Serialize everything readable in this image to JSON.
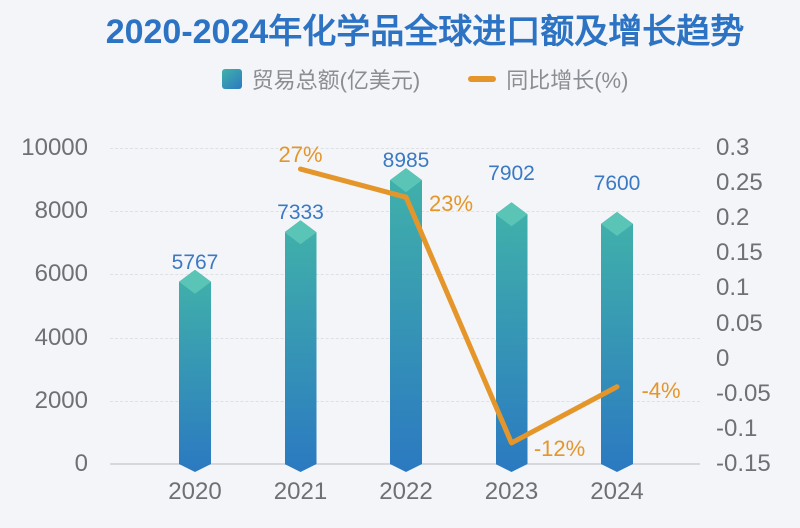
{
  "title": "2020-2024年化学品全球进口额及增长趋势",
  "legend": {
    "items": [
      {
        "label": "贸易总额(亿美元)",
        "marker": "square"
      },
      {
        "label": "同比增长(%)",
        "marker": "dash"
      }
    ]
  },
  "chart_data": {
    "type": "combo",
    "title": "2020-2024年化学品全球进口额及增长趋势",
    "categories": [
      "2020",
      "2021",
      "2022",
      "2023",
      "2024"
    ],
    "series": [
      {
        "name": "贸易总额(亿美元)",
        "type": "bar",
        "axis": "left",
        "values": [
          5767,
          7333,
          8985,
          7902,
          7600
        ],
        "data_labels": [
          "5767",
          "7333",
          "8985",
          "7902",
          "7600"
        ]
      },
      {
        "name": "同比增长(%)",
        "type": "line",
        "axis": "right",
        "values": [
          null,
          0.27,
          0.23,
          -0.12,
          -0.04
        ],
        "data_labels": [
          "",
          "27%",
          "23%",
          "-12%",
          "-4%"
        ]
      }
    ],
    "left_axis": {
      "min": 0,
      "max": 10000,
      "tick_labels": [
        "0",
        "2000",
        "4000",
        "6000",
        "8000",
        "10000"
      ]
    },
    "right_axis": {
      "min": -0.15,
      "max": 0.3,
      "tick_labels": [
        "0.3",
        "0.25",
        "0.2",
        "0.15",
        "0.1",
        "0.05",
        "0",
        "-0.05",
        "-0.1",
        "-0.15"
      ]
    },
    "grid": {
      "dashed": true
    },
    "legend_position": "top",
    "layout_hints": {
      "bar_label_dy": [
        0,
        0,
        0,
        -21,
        -21
      ],
      "line_label_offsets": {
        "1": [
          0,
          -14
        ],
        "2": [
          45,
          7
        ],
        "3": [
          48,
          6
        ],
        "4": [
          44,
          4
        ]
      }
    }
  },
  "colors": {
    "background": "#f4f5f8",
    "title": "#2d73c4",
    "bar_top": "#41b2a9",
    "bar_bottom": "#2b79c1",
    "bar_cap": "#5ac4b6",
    "bar_label": "#3a79c3",
    "line": "#e5962b",
    "line_label": "#e5962b",
    "axis_text": "#6e7073",
    "legend_text": "#8a8d91",
    "gridline": "#dde0e5",
    "axis_line": "#d6d8db"
  }
}
